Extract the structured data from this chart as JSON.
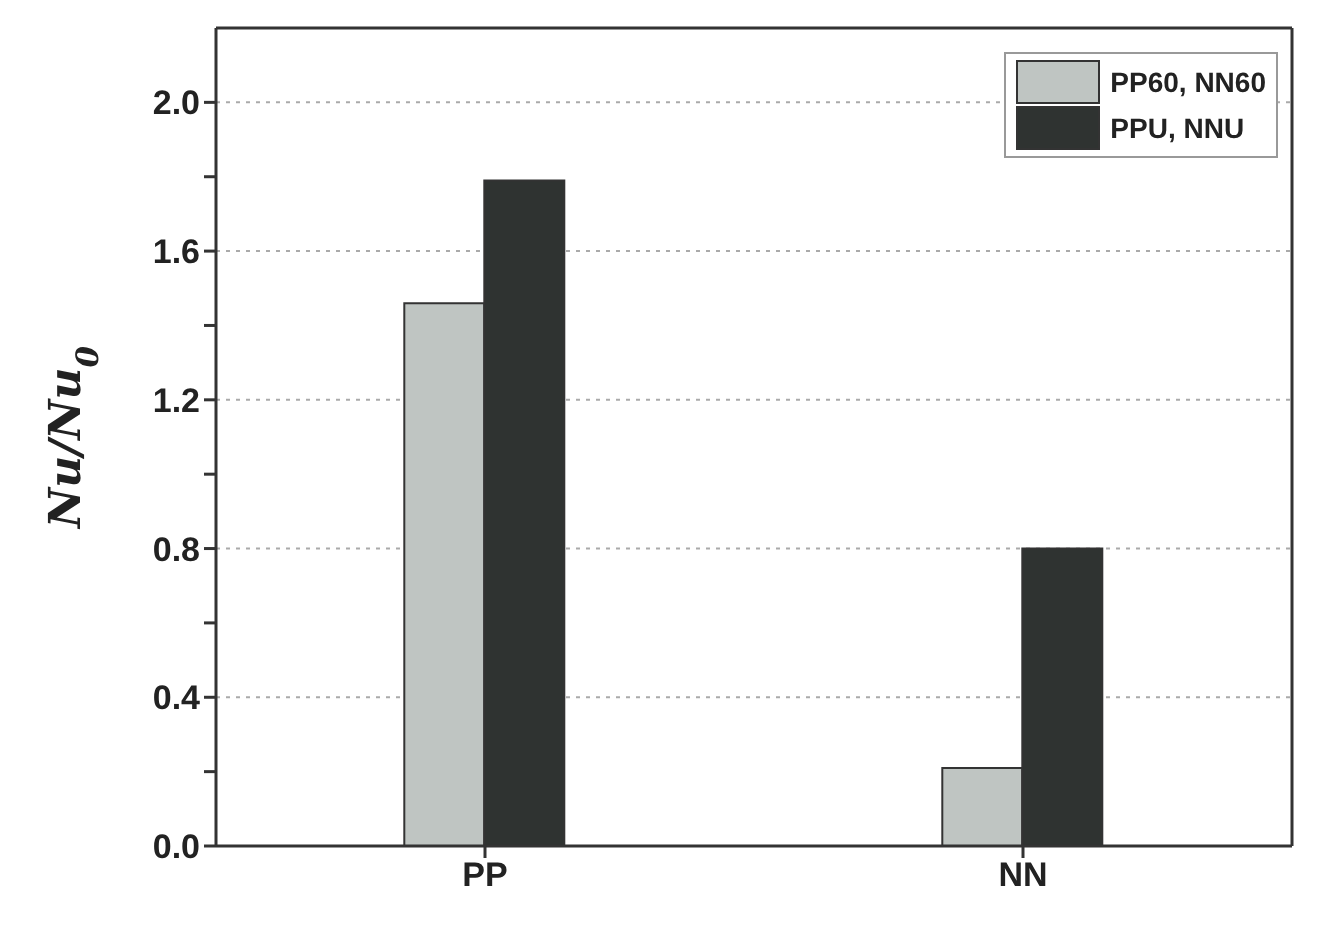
{
  "chart_data": {
    "type": "bar",
    "ylabel": "Nu/Nu$_{0}$",
    "categories": [
      "PP",
      "NN"
    ],
    "series": [
      {
        "name": "PP60, NN60",
        "color": "#bfc5c2",
        "values": [
          1.46,
          0.21
        ]
      },
      {
        "name": "PPU, NNU",
        "color": "#2f3331",
        "values": [
          1.79,
          0.8
        ]
      }
    ],
    "ylim": [
      0,
      2.2
    ],
    "yticks": [
      {
        "value": 0,
        "label": "0.0"
      },
      {
        "value": 0.2,
        "label": null
      },
      0.4,
      {
        "value": 0.6,
        "label": null
      },
      0.8,
      {
        "value": 1.0,
        "label": null
      },
      1.2,
      {
        "value": 1.4,
        "label": null
      },
      1.6,
      {
        "value": 1.8,
        "label": null
      },
      {
        "value": 2,
        "label": "2.0"
      }
    ],
    "grid": "y",
    "legend": "top right"
  }
}
